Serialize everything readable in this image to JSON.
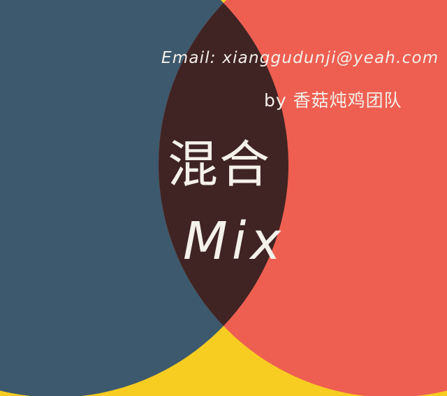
{
  "colors": {
    "background": "#f8cd22",
    "left_circle": "#3d596d",
    "right_circle": "#ee5f51",
    "overlap": "#3f2423",
    "text": "#f4f0ea"
  },
  "email": "Email: xianggudunji@yeah.com",
  "credit": "by 香菇炖鸡团队",
  "title": {
    "cn": "混合",
    "en": "Mix"
  }
}
